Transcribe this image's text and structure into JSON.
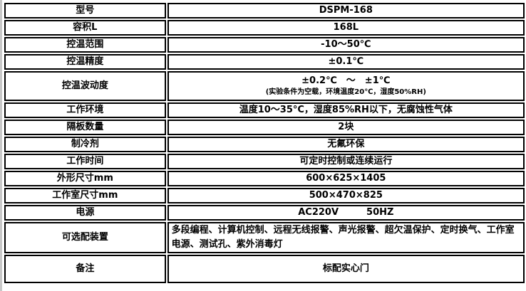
{
  "rows": [
    {
      "label": "型号",
      "value": "DSPM-168"
    },
    {
      "label": "容积L",
      "value": "168L"
    },
    {
      "label": "控温范围",
      "value": "-10～50℃"
    },
    {
      "label": "控温精度",
      "value": "±0.1℃"
    },
    {
      "label": "控温波动度",
      "value": "±0.2℃　～　±1℃",
      "note": "(实验条件为空载，环境温度20℃，湿度50%RH)"
    },
    {
      "label": "工作环境",
      "value": "温度10～35°C，湿度85%RH以下，无腐蚀性气体"
    },
    {
      "label": "隔板数量",
      "value": "2块"
    },
    {
      "label": "制冷剂",
      "value": "无氟环保"
    },
    {
      "label": "工作时间",
      "value": "可定时控制或连续运行"
    },
    {
      "label": "外形尺寸mm",
      "value": "600×625×1405"
    },
    {
      "label": "工作室尺寸mm",
      "value": "500×470×825"
    },
    {
      "label": "电源",
      "value": "AC220V　　　50HZ"
    },
    {
      "label": "可选配装置",
      "value": "多段编程、计算机控制、远程无线报警、声光报警、超欠温保护、定时换气、工作室电源、测试孔、紫外消毒灯"
    },
    {
      "label": "备注",
      "value": "标配实心门"
    }
  ]
}
